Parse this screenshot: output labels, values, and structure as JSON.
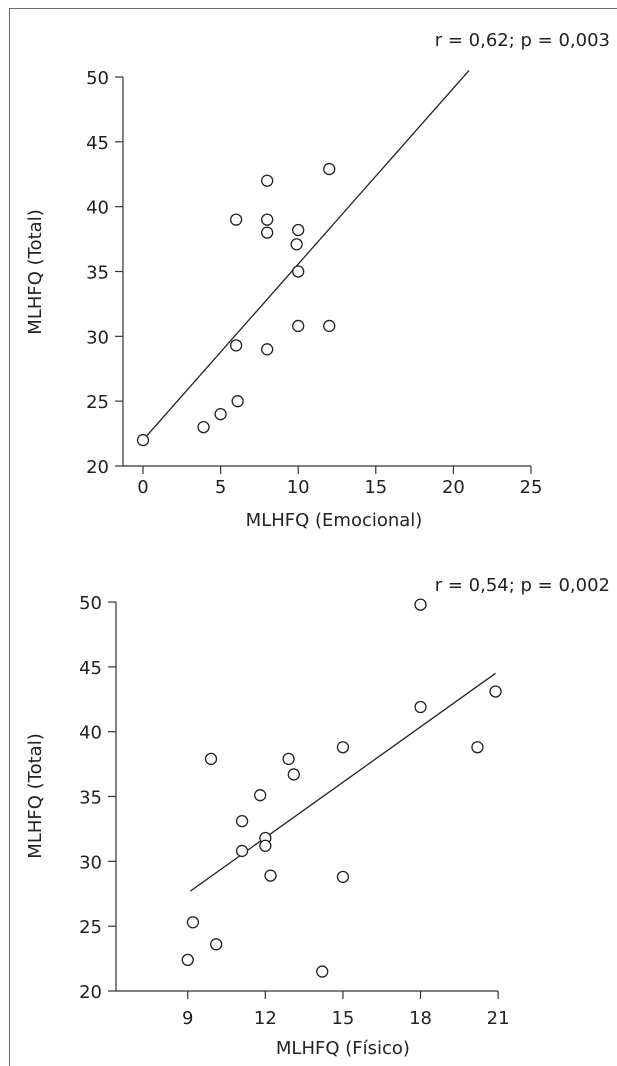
{
  "chart_data": [
    {
      "type": "scatter",
      "title": "",
      "annotation": "r = 0,62; p = 0,003",
      "xlabel": "MLHFQ (Emocional)",
      "ylabel": "MLHFQ (Total)",
      "xlim": [
        0,
        25
      ],
      "ylim": [
        20,
        50
      ],
      "xticks": [
        0,
        5,
        10,
        15,
        20,
        25
      ],
      "yticks": [
        20,
        25,
        30,
        35,
        40,
        45,
        50
      ],
      "trendline": {
        "x": [
          0,
          21
        ],
        "y": [
          22,
          50.5
        ]
      },
      "points": [
        {
          "x": 0,
          "y": 22
        },
        {
          "x": 3.9,
          "y": 23
        },
        {
          "x": 5,
          "y": 24
        },
        {
          "x": 6.1,
          "y": 25
        },
        {
          "x": 6,
          "y": 29.3
        },
        {
          "x": 8,
          "y": 29
        },
        {
          "x": 6,
          "y": 39
        },
        {
          "x": 8,
          "y": 42
        },
        {
          "x": 8,
          "y": 39
        },
        {
          "x": 8,
          "y": 38
        },
        {
          "x": 10,
          "y": 38.2
        },
        {
          "x": 9.9,
          "y": 37.1
        },
        {
          "x": 10,
          "y": 35
        },
        {
          "x": 10,
          "y": 30.8
        },
        {
          "x": 12,
          "y": 30.8
        },
        {
          "x": 12,
          "y": 42.9
        }
      ]
    },
    {
      "type": "scatter",
      "title": "",
      "annotation": "r = 0,54; p = 0,002",
      "xlabel": "MLHFQ (Físico)",
      "ylabel": "MLHFQ (Total)",
      "xlim": [
        7,
        22
      ],
      "ylim": [
        20,
        50
      ],
      "xticks": [
        9,
        12,
        15,
        18,
        21
      ],
      "yticks": [
        20,
        25,
        30,
        35,
        40,
        45,
        50
      ],
      "trendline": {
        "x": [
          9.1,
          20.9
        ],
        "y": [
          27.7,
          44.5
        ]
      },
      "points": [
        {
          "x": 9,
          "y": 22.4
        },
        {
          "x": 9.2,
          "y": 25.3
        },
        {
          "x": 10.1,
          "y": 23.6
        },
        {
          "x": 9.9,
          "y": 37.9
        },
        {
          "x": 11.1,
          "y": 33.1
        },
        {
          "x": 11.1,
          "y": 30.8
        },
        {
          "x": 11.8,
          "y": 35.1
        },
        {
          "x": 12,
          "y": 31.8
        },
        {
          "x": 12,
          "y": 31.2
        },
        {
          "x": 12.2,
          "y": 28.9
        },
        {
          "x": 12.9,
          "y": 37.9
        },
        {
          "x": 13.1,
          "y": 36.7
        },
        {
          "x": 14.2,
          "y": 21.5
        },
        {
          "x": 15,
          "y": 38.8
        },
        {
          "x": 15,
          "y": 28.8
        },
        {
          "x": 18,
          "y": 49.8
        },
        {
          "x": 18,
          "y": 41.9
        },
        {
          "x": 20.2,
          "y": 38.8
        },
        {
          "x": 20.9,
          "y": 43.1
        }
      ]
    }
  ]
}
